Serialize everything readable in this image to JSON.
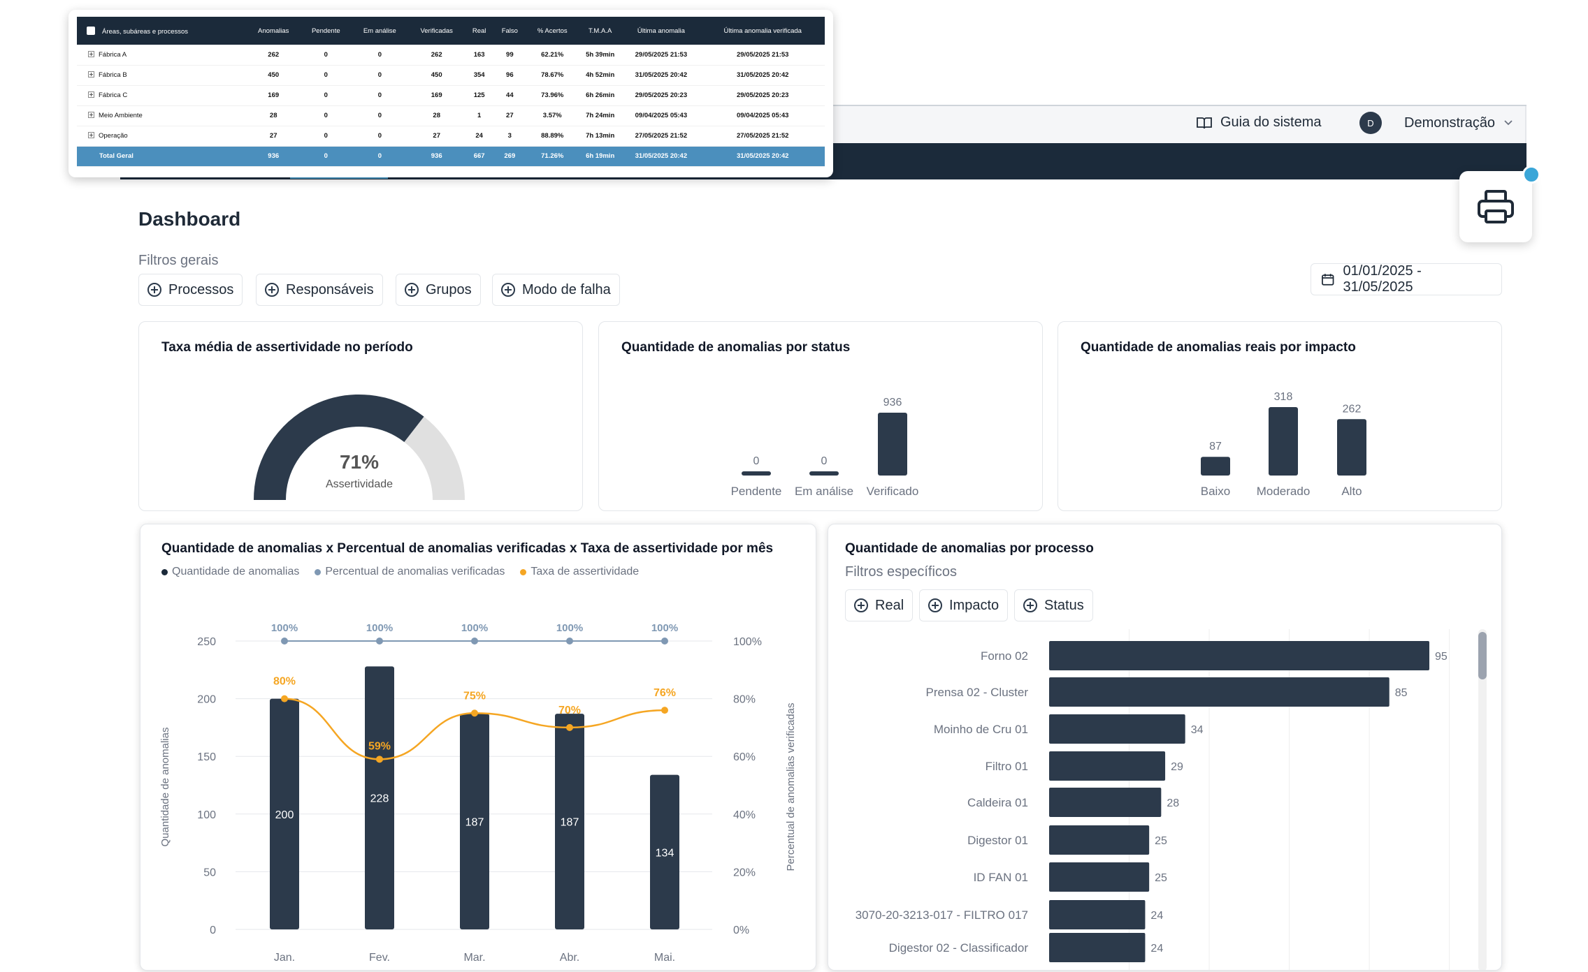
{
  "header": {
    "guide_label": "Guia do sistema",
    "user_initial": "D",
    "user_name": "Demonstração"
  },
  "page": {
    "title": "Dashboard",
    "filters_label": "Filtros gerais",
    "filters": [
      "Processos",
      "Responsáveis",
      "Grupos",
      "Modo de falha"
    ],
    "date_range": "01/01/2025 - 31/05/2025"
  },
  "table": {
    "headers": [
      "Áreas, subáreas e processos",
      "Anomalias",
      "Pendente",
      "Em análise",
      "Verificadas",
      "Real",
      "Falso",
      "% Acertos",
      "T.M.A.A",
      "Última anomalia",
      "Última anomalia verificada"
    ],
    "rows": [
      [
        "Fábrica A",
        "262",
        "0",
        "0",
        "262",
        "163",
        "99",
        "62.21%",
        "5h 39min",
        "29/05/2025 21:53",
        "29/05/2025 21:53"
      ],
      [
        "Fábrica B",
        "450",
        "0",
        "0",
        "450",
        "354",
        "96",
        "78.67%",
        "4h 52min",
        "31/05/2025 20:42",
        "31/05/2025 20:42"
      ],
      [
        "Fábrica C",
        "169",
        "0",
        "0",
        "169",
        "125",
        "44",
        "73.96%",
        "6h 26min",
        "29/05/2025 20:23",
        "29/05/2025 20:23"
      ],
      [
        "Meio Ambiente",
        "28",
        "0",
        "0",
        "28",
        "1",
        "27",
        "3.57%",
        "7h 24min",
        "09/04/2025 05:43",
        "09/04/2025 05:43"
      ],
      [
        "Operação",
        "27",
        "0",
        "0",
        "27",
        "24",
        "3",
        "88.89%",
        "7h 13min",
        "27/05/2025 21:52",
        "27/05/2025 21:52"
      ]
    ],
    "total": [
      "Total Geral",
      "936",
      "0",
      "0",
      "936",
      "667",
      "269",
      "71.26%",
      "6h 19min",
      "31/05/2025 20:42",
      "31/05/2025 20:42"
    ]
  },
  "gauge": {
    "title": "Taxa média de assertividade no período",
    "value": 71,
    "value_label": "71%",
    "caption": "Assertividade",
    "colors": {
      "fill": "#2c3a4b",
      "track": "#e0e0e0"
    }
  },
  "status_chart": {
    "title": "Quantidade de anomalias por status",
    "chart_data": {
      "type": "bar",
      "categories": [
        "Pendente",
        "Em análise",
        "Verificado"
      ],
      "values": [
        0,
        0,
        936
      ]
    }
  },
  "impact_chart": {
    "title": "Quantidade de anomalias reais por impacto",
    "chart_data": {
      "type": "bar",
      "categories": [
        "Baixo",
        "Moderado",
        "Alto"
      ],
      "values": [
        87,
        318,
        262
      ]
    }
  },
  "monthly_chart": {
    "title": "Quantidade de anomalias x Percentual de anomalias verificadas x Taxa de assertividade por mês",
    "legend": [
      "Quantidade de anomalias",
      "Percentual de anomalias verificadas",
      "Taxa de assertividade"
    ],
    "ylabel_left": "Quantidade de anomalias",
    "ylabel_right": "Percentual de anomalias verificadas",
    "left_ticks": [
      "0",
      "50",
      "100",
      "150",
      "200",
      "250"
    ],
    "right_ticks": [
      "0%",
      "20%",
      "40%",
      "60%",
      "80%",
      "100%"
    ],
    "chart_data": {
      "type": "bar",
      "categories": [
        "Jan.",
        "Fev.",
        "Mar.",
        "Abr.",
        "Mai."
      ],
      "ylim": [
        0,
        250
      ],
      "y2lim": [
        0,
        100
      ],
      "series": [
        {
          "name": "Quantidade de anomalias",
          "values": [
            200,
            228,
            187,
            187,
            134
          ]
        },
        {
          "name": "Percentual de anomalias verificadas",
          "values": [
            100,
            100,
            100,
            100,
            100
          ],
          "labels": [
            "100%",
            "100%",
            "100%",
            "100%",
            "100%"
          ]
        },
        {
          "name": "Taxa de assertividade",
          "values": [
            80,
            59,
            75,
            70,
            76
          ],
          "labels": [
            "80%",
            "59%",
            "75%",
            "70%",
            "76%"
          ]
        }
      ]
    },
    "colors": {
      "bar": "#2c3a4b",
      "pct": "#7f98b3",
      "rate": "#f5a623"
    }
  },
  "process_chart": {
    "title": "Quantidade de anomalias por processo",
    "filters_label": "Filtros específicos",
    "filters": [
      "Real",
      "Impacto",
      "Status"
    ],
    "chart_data": {
      "type": "bar",
      "categories": [
        "Forno 02",
        "Prensa 02 - Cluster",
        "Moinho de Cru 01",
        "Filtro 01",
        "Caldeira 01",
        "Digestor 01",
        "ID FAN 01",
        "3070-20-3213-017 - FILTRO 017",
        "Digestor 02 - Classificador"
      ],
      "values": [
        95,
        85,
        34,
        29,
        28,
        25,
        25,
        24,
        24
      ]
    }
  }
}
